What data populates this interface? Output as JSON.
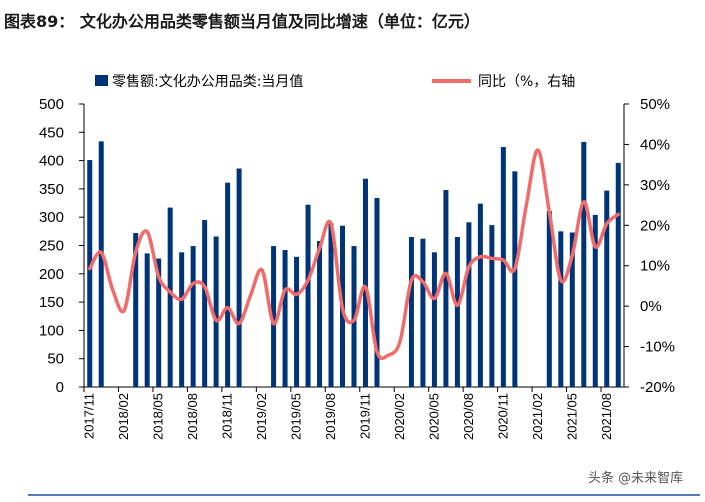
{
  "title": "图表89：  文化办公用品类零售额当月值及同比增速（单位：亿元）",
  "watermark": "头条 @未来智库",
  "colors": {
    "bar": "#003478",
    "line": "#F26B6B",
    "rule": "#1F4E9C"
  },
  "chart_data": {
    "type": "bar+line",
    "categories": [
      "2017/11",
      "2017/12",
      "2018/01",
      "2018/02",
      "2018/03",
      "2018/04",
      "2018/05",
      "2018/06",
      "2018/07",
      "2018/08",
      "2018/09",
      "2018/10",
      "2018/11",
      "2018/12",
      "2019/01",
      "2019/02",
      "2019/03",
      "2019/04",
      "2019/05",
      "2019/06",
      "2019/07",
      "2019/08",
      "2019/09",
      "2019/10",
      "2019/11",
      "2019/12",
      "2020/01",
      "2020/02",
      "2020/03",
      "2020/04",
      "2020/05",
      "2020/06",
      "2020/07",
      "2020/08",
      "2020/09",
      "2020/10",
      "2020/11",
      "2020/12",
      "2021/01",
      "2021/02",
      "2021/03",
      "2021/04",
      "2021/05",
      "2021/06",
      "2021/07",
      "2021/08",
      "2021/09"
    ],
    "x_tick_labels": [
      "2017/11",
      "2018/02",
      "2018/05",
      "2018/08",
      "2018/11",
      "2019/02",
      "2019/05",
      "2019/08",
      "2019/11",
      "2020/02",
      "2020/05",
      "2020/08",
      "2020/11",
      "2021/02",
      "2021/05",
      "2021/08"
    ],
    "series": [
      {
        "name": "零售额:文化办公用品类:当月值",
        "type": "bar",
        "axis": "left",
        "values": [
          401,
          434,
          null,
          null,
          272,
          236,
          227,
          317,
          238,
          249,
          295,
          266,
          361,
          386,
          null,
          null,
          249,
          242,
          230,
          322,
          258,
          289,
          285,
          249,
          368,
          334,
          null,
          null,
          265,
          262,
          238,
          348,
          265,
          291,
          324,
          286,
          424,
          381,
          null,
          null,
          311,
          275,
          273,
          433,
          304,
          347,
          396
        ]
      },
      {
        "name": "同比（%，右轴",
        "type": "line",
        "axis": "right",
        "values": [
          9.3,
          13.3,
          4.0,
          -1.0,
          13.4,
          18.4,
          7.3,
          3.5,
          1.7,
          5.6,
          4.8,
          -3.5,
          -0.4,
          -4.3,
          2.7,
          8.9,
          -4.3,
          4.0,
          2.9,
          6.4,
          14.3,
          20.4,
          -0.6,
          -3.5,
          4.8,
          -11.3,
          -12.1,
          -8.8,
          6.4,
          6.0,
          1.9,
          8.1,
          0.2,
          9.7,
          12.2,
          11.8,
          11.4,
          9.3,
          25.0,
          38.6,
          23.3,
          6.4,
          12.6,
          25.8,
          14.7,
          20.4,
          22.7
        ]
      }
    ],
    "y_left": {
      "range": [
        0,
        500
      ],
      "ticks": [
        "0",
        "50",
        "100",
        "150",
        "200",
        "250",
        "300",
        "350",
        "400",
        "450",
        "500"
      ]
    },
    "y_right": {
      "range": [
        -20,
        50
      ],
      "ticks": [
        "-20%",
        "-10%",
        "0%",
        "10%",
        "20%",
        "30%",
        "40%",
        "50%"
      ]
    },
    "grid": false,
    "legend_position": "top"
  }
}
